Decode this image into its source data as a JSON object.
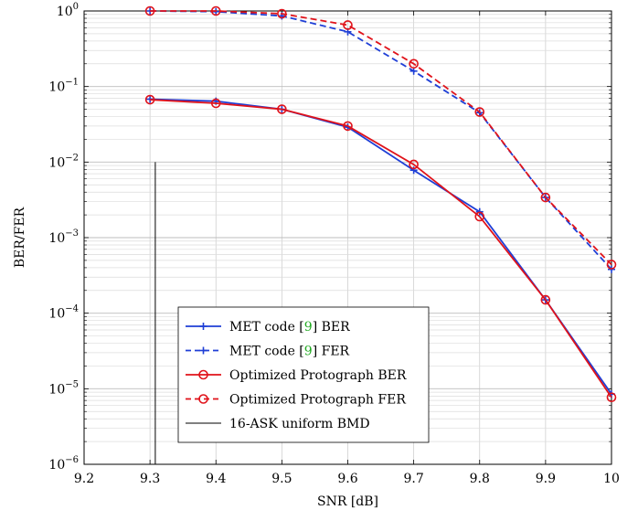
{
  "chart_data": {
    "type": "line",
    "xlabel": "SNR [dB]",
    "ylabel": "BER/FER",
    "xlim": [
      9.2,
      10
    ],
    "ylim": [
      1e-06,
      1
    ],
    "yscale": "log",
    "grid": true,
    "xticks": [
      9.2,
      9.3,
      9.4,
      9.5,
      9.6,
      9.7,
      9.8,
      9.9,
      10
    ],
    "xtick_labels": [
      "9.2",
      "9.3",
      "9.4",
      "9.5",
      "9.6",
      "9.7",
      "9.8",
      "9.9",
      "10"
    ],
    "yticks": [
      {
        "value": 1,
        "base": "10",
        "exp": "0"
      },
      {
        "value": 0.1,
        "base": "10",
        "exp": "−1"
      },
      {
        "value": 0.01,
        "base": "10",
        "exp": "−2"
      },
      {
        "value": 0.001,
        "base": "10",
        "exp": "−3"
      },
      {
        "value": 0.0001,
        "base": "10",
        "exp": "−4"
      },
      {
        "value": 1e-05,
        "base": "10",
        "exp": "−5"
      },
      {
        "value": 1e-06,
        "base": "10",
        "exp": "−6"
      }
    ],
    "legend_position": "bottom-center",
    "series": [
      {
        "key": "met-ber",
        "name": "MET code [9] BER",
        "name_parts": [
          "MET code [",
          "9",
          "] BER"
        ],
        "color": "#1f3fd6",
        "dash": "solid",
        "marker": "plus",
        "x": [
          9.3,
          9.4,
          9.5,
          9.6,
          9.7,
          9.8,
          9.9,
          10
        ],
        "y": [
          0.068,
          0.064,
          0.05,
          0.029,
          0.0078,
          0.0022,
          0.00015,
          8.5e-06
        ]
      },
      {
        "key": "met-fer",
        "name": "MET code [9] FER",
        "name_parts": [
          "MET code [",
          "9",
          "] FER"
        ],
        "color": "#1f3fd6",
        "dash": "dashed",
        "marker": "plus",
        "x": [
          9.3,
          9.4,
          9.5,
          9.6,
          9.7,
          9.8,
          9.9,
          10
        ],
        "y": [
          1.0,
          0.98,
          0.86,
          0.53,
          0.16,
          0.045,
          0.0034,
          0.00038
        ]
      },
      {
        "key": "opt-ber",
        "name": "Optimized Protograph BER",
        "color": "#e0121a",
        "dash": "solid",
        "marker": "circle",
        "x": [
          9.3,
          9.4,
          9.5,
          9.6,
          9.7,
          9.8,
          9.9,
          10
        ],
        "y": [
          0.067,
          0.06,
          0.05,
          0.03,
          0.0093,
          0.0019,
          0.00015,
          7.7e-06
        ]
      },
      {
        "key": "opt-fer",
        "name": "Optimized Protograph FER",
        "color": "#e0121a",
        "dash": "dashed",
        "marker": "circle",
        "x": [
          9.3,
          9.4,
          9.5,
          9.6,
          9.7,
          9.8,
          9.9,
          10
        ],
        "y": [
          1.0,
          1.0,
          0.92,
          0.65,
          0.2,
          0.046,
          0.0034,
          0.00044
        ]
      },
      {
        "key": "ask-bmd",
        "name": "16-ASK uniform BMD",
        "color": "#000000",
        "dash": "solid",
        "marker": "none",
        "x": [
          9.308,
          9.308
        ],
        "y": [
          0.01,
          1e-06
        ]
      }
    ]
  }
}
